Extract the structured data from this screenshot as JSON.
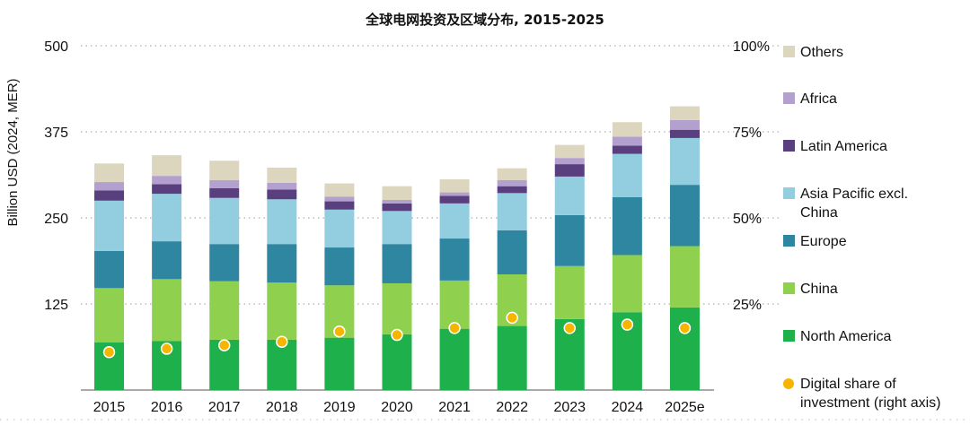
{
  "chart_data": {
    "type": "bar",
    "stacked": true,
    "title": "全球电网投资及区域分布, 2015-2025",
    "ylabel": "Billion USD (2024, MER)",
    "ylim": [
      0,
      500
    ],
    "yticks": [
      "500",
      "375",
      "250",
      "125"
    ],
    "y2lim": [
      0,
      100
    ],
    "y2ticks": [
      "100%",
      "75%",
      "50%",
      "25%"
    ],
    "categories": [
      "2015",
      "2016",
      "2017",
      "2018",
      "2019",
      "2020",
      "2021",
      "2022",
      "2023",
      "2024",
      "2025e"
    ],
    "series": [
      {
        "name": "North America",
        "color": "#1db04b",
        "values": [
          69,
          71,
          73,
          73,
          76,
          81,
          89,
          93,
          103,
          113,
          120
        ]
      },
      {
        "name": "China",
        "color": "#8fd14f",
        "values": [
          79,
          90,
          85,
          83,
          76,
          74,
          70,
          75,
          77,
          83,
          89
        ]
      },
      {
        "name": "Europe",
        "color": "#2e86a0",
        "values": [
          54,
          55,
          54,
          56,
          55,
          57,
          61,
          64,
          74,
          84,
          89
        ]
      },
      {
        "name": "Asia Pacific excl.\nChina",
        "color": "#92cde0",
        "values": [
          73,
          69,
          67,
          65,
          55,
          48,
          51,
          54,
          56,
          63,
          68
        ]
      },
      {
        "name": "Latin America",
        "color": "#5a3f7e",
        "values": [
          15,
          14,
          14,
          14,
          12,
          11,
          11,
          10,
          18,
          12,
          12
        ]
      },
      {
        "name": "Africa",
        "color": "#b3a0cf",
        "values": [
          12,
          12,
          12,
          10,
          7,
          5,
          5,
          9,
          9,
          13,
          14
        ]
      },
      {
        "name": "Others",
        "color": "#ddd6be",
        "values": [
          27,
          30,
          28,
          22,
          19,
          20,
          19,
          17,
          19,
          21,
          20
        ]
      }
    ],
    "overlay": {
      "name": "Digital share of\ninvestment (right axis)",
      "type": "scatter",
      "axis": "right",
      "color": "#f7b500",
      "values": [
        11,
        12,
        13,
        14,
        17,
        16,
        18,
        21,
        18,
        19,
        18
      ]
    },
    "grid": true,
    "legend": "right"
  }
}
